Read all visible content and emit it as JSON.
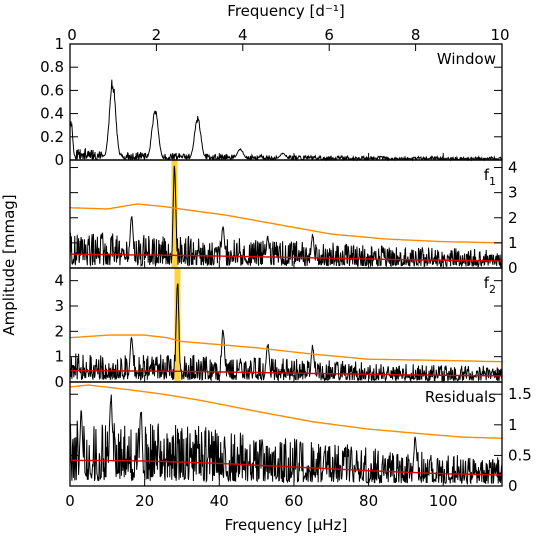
{
  "chart_data": {
    "type": "line",
    "top_axis": {
      "label": "Frequency [d⁻¹]",
      "range": [
        0,
        10
      ],
      "ticks": [
        0,
        2,
        4,
        6,
        8,
        10
      ],
      "tick_labels": [
        "0",
        "2",
        "4",
        "6",
        "8",
        "10"
      ]
    },
    "bottom_axis": {
      "label": "Frequency [μHz]",
      "range": [
        0,
        115.74
      ],
      "ticks": [
        0,
        20,
        40,
        60,
        80,
        100
      ],
      "tick_labels": [
        "0",
        "20",
        "40",
        "60",
        "80",
        "100"
      ]
    },
    "ylabel": "Amplitude [mmag]",
    "colors": {
      "signal": "#000000",
      "significance": "#ff8c00",
      "noise": "#dd0000",
      "highlight": "#ffd23f"
    },
    "panels": [
      {
        "name": "window",
        "label": "Window",
        "label_sub": "",
        "y_axis_side": "left",
        "ylim": [
          0,
          1.0
        ],
        "yticks": [
          0,
          0.2,
          0.4,
          0.6,
          0.8,
          1
        ],
        "ytick_labels": [
          "0",
          "0.2",
          "0.4",
          "0.6",
          "0.8",
          "1"
        ],
        "baseline": 0.04,
        "peaks": [
          {
            "x": 0.3,
            "amp": 0.35,
            "width": 0.6
          },
          {
            "x": 11.4,
            "amp": 0.72,
            "width": 1.2
          },
          {
            "x": 22.8,
            "amp": 0.45,
            "width": 1.2
          },
          {
            "x": 34.2,
            "amp": 0.38,
            "width": 1.2
          },
          {
            "x": 45.6,
            "amp": 0.1,
            "width": 1.2
          },
          {
            "x": 57.0,
            "amp": 0.06,
            "width": 1.2
          }
        ]
      },
      {
        "name": "f1",
        "label": "f",
        "label_sub": "1",
        "y_axis_side": "right",
        "ylim": [
          0,
          4.3
        ],
        "yticks": [
          0,
          1,
          2,
          3,
          4
        ],
        "ytick_labels": [
          "0",
          "1",
          "2",
          "3",
          "4"
        ],
        "baseline": 0.55,
        "highlight_x": 28.0,
        "significance_curve": {
          "x": [
            0,
            10,
            18,
            25,
            32,
            42,
            55,
            70,
            85,
            100,
            115.74
          ],
          "y": [
            2.4,
            2.35,
            2.55,
            2.45,
            2.3,
            2.1,
            1.75,
            1.35,
            1.15,
            1.05,
            1.0
          ]
        },
        "noise_curve": {
          "x": [
            0,
            30,
            60,
            90,
            115.74
          ],
          "y": [
            0.55,
            0.5,
            0.42,
            0.33,
            0.28
          ]
        },
        "peaks": [
          {
            "x": 16.5,
            "amp": 2.2,
            "width": 0.6
          },
          {
            "x": 28.0,
            "amp": 4.3,
            "width": 0.5
          },
          {
            "x": 41.0,
            "amp": 1.8,
            "width": 0.6
          },
          {
            "x": 53.0,
            "amp": 1.3,
            "width": 0.6
          },
          {
            "x": 65.0,
            "amp": 1.4,
            "width": 0.6
          }
        ]
      },
      {
        "name": "f2",
        "label": "f",
        "label_sub": "2",
        "y_axis_side": "left",
        "ylim": [
          0,
          4.5
        ],
        "yticks": [
          0,
          1,
          2,
          3,
          4
        ],
        "ytick_labels": [
          "0",
          "1",
          "2",
          "3",
          "4"
        ],
        "baseline": 0.45,
        "highlight_x": 28.8,
        "significance_curve": {
          "x": [
            0,
            10,
            20,
            26,
            30,
            38,
            50,
            65,
            80,
            100,
            115.74
          ],
          "y": [
            1.75,
            1.85,
            1.85,
            1.75,
            1.6,
            1.5,
            1.35,
            1.1,
            0.9,
            0.85,
            0.8
          ]
        },
        "noise_curve": {
          "x": [
            0,
            30,
            60,
            90,
            115.74
          ],
          "y": [
            0.45,
            0.42,
            0.35,
            0.28,
            0.24
          ]
        },
        "peaks": [
          {
            "x": 16.5,
            "amp": 1.9,
            "width": 0.6
          },
          {
            "x": 28.8,
            "amp": 4.5,
            "width": 0.5
          },
          {
            "x": 41.0,
            "amp": 2.2,
            "width": 0.6
          },
          {
            "x": 53.0,
            "amp": 1.6,
            "width": 0.6
          },
          {
            "x": 65.0,
            "amp": 1.5,
            "width": 0.6
          }
        ]
      },
      {
        "name": "residuals",
        "label": "Residuals",
        "label_sub": "",
        "y_axis_side": "right",
        "ylim": [
          0,
          1.7
        ],
        "yticks": [
          0,
          0.5,
          1,
          1.5
        ],
        "ytick_labels": [
          "0",
          "0.5",
          "1",
          "1.5"
        ],
        "baseline": 0.3,
        "significance_curve": {
          "x": [
            0,
            5,
            15,
            25,
            35,
            50,
            65,
            80,
            95,
            105,
            115.74
          ],
          "y": [
            1.62,
            1.65,
            1.58,
            1.5,
            1.4,
            1.22,
            1.05,
            0.93,
            0.85,
            0.8,
            0.78
          ]
        },
        "noise_curve": {
          "x": [
            0,
            20,
            40,
            60,
            80,
            100,
            115.74
          ],
          "y": [
            0.42,
            0.41,
            0.37,
            0.31,
            0.25,
            0.2,
            0.18
          ]
        },
        "peaks": [
          {
            "x": 11.0,
            "amp": 1.55,
            "width": 0.6
          },
          {
            "x": 3.0,
            "amp": 1.3,
            "width": 0.5
          },
          {
            "x": 19.0,
            "amp": 1.35,
            "width": 0.5
          },
          {
            "x": 92.5,
            "amp": 0.85,
            "width": 0.6
          }
        ]
      }
    ]
  }
}
